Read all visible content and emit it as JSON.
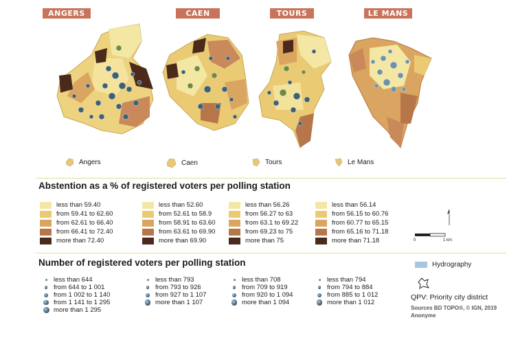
{
  "cities": [
    {
      "name": "ANGERS",
      "mini_label": "Angers"
    },
    {
      "name": "CAEN",
      "mini_label": "Caen"
    },
    {
      "name": "TOURS",
      "mini_label": "Tours"
    },
    {
      "name": "LE MANS",
      "mini_label": "Le Mans"
    }
  ],
  "abstention": {
    "title": "Abstention as a % of registered voters per polling station",
    "colors": [
      "#f4e7a4",
      "#eacb74",
      "#d9a560",
      "#b7764a",
      "#4b2a1c"
    ],
    "columns": [
      [
        "less than 59.40",
        "from 59.41 to 62.60",
        "from 62.61 to 66.40",
        "from 66.41 to 72.40",
        "more than 72.40"
      ],
      [
        "less than 52.60",
        "from 52.61 to 58.9",
        "from 58.91 to 63.60",
        "from 63.61 to 69.90",
        "more than 69.90"
      ],
      [
        "less than 56.26",
        "from 56.27 to 63",
        "from 63.1 to 69.22",
        "from 69.23 to 75",
        "more than 75"
      ],
      [
        "less than 56.14",
        "from 56.15 to 60.76",
        "from 60.77 to 65.15",
        "from 65.16 to 71.18",
        "more than 71.18"
      ]
    ]
  },
  "voters": {
    "title": "Number of registered voters per polling station",
    "columns": [
      [
        "less than 644",
        "from 644 to 1 001",
        "from 1 002 to 1 140",
        "from 1 141 to 1 295",
        "more than 1 295"
      ],
      [
        "less than 793",
        "from 793 to 926",
        "from 927 to 1 107",
        "more than 1 107"
      ],
      [
        "less than 708",
        "from 709 to 919",
        "from 920 to 1 094",
        "more than 1 094"
      ],
      [
        "less than 794",
        "from 794 to 884",
        "from 885 to 1 012",
        "more than 1 012"
      ]
    ]
  },
  "scale": {
    "zero": "0",
    "unit": "1 km"
  },
  "hydrography": {
    "label": "Hydrography",
    "color": "#a9c7dc"
  },
  "qpv": {
    "label": "QPV: Priority city district"
  },
  "sources": {
    "line1": "Sources BD TOPO®, © IGN, 2019",
    "line2": "Anonyme"
  }
}
